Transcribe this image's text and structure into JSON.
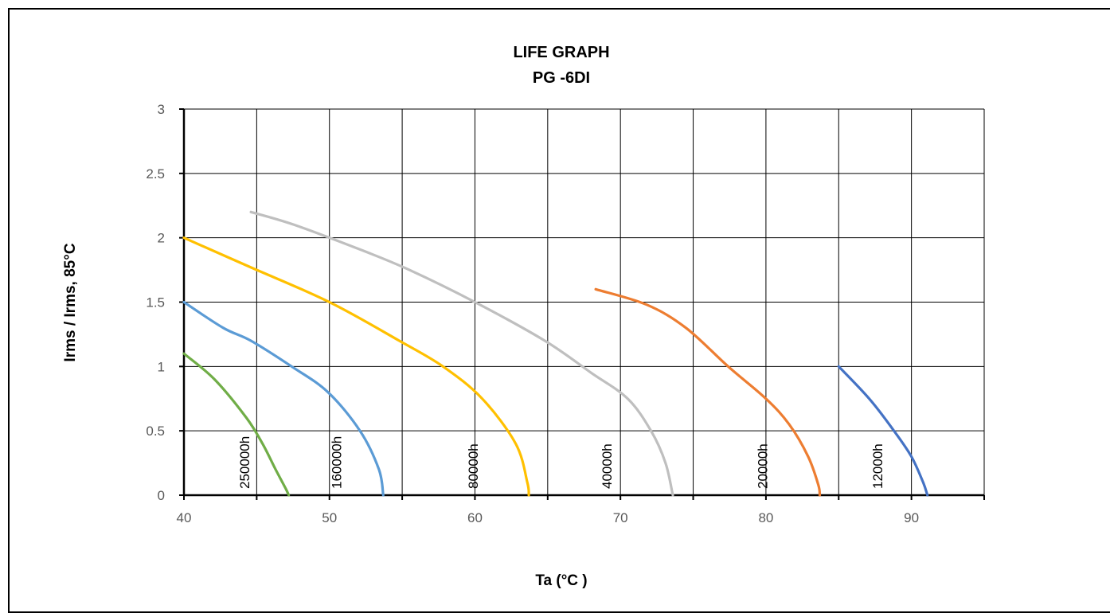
{
  "chart_data": {
    "type": "line",
    "title": "LIFE GRAPH",
    "subtitle": "PG -6DI",
    "xlabel": "Ta (°C )",
    "ylabel": "Irms / Irms, 85°C",
    "xlim": [
      40,
      95
    ],
    "ylim": [
      0,
      3
    ],
    "x_ticks": [
      40,
      50,
      60,
      70,
      80,
      90
    ],
    "x_tick_labels": [
      "40",
      "50",
      "60",
      "70",
      "80",
      "90"
    ],
    "y_ticks": [
      0,
      0.5,
      1,
      1.5,
      2,
      2.5,
      3
    ],
    "y_tick_labels": [
      "0",
      "0.5",
      "1",
      "1.5",
      "2",
      "2.5",
      "3"
    ],
    "grid": true,
    "series": [
      {
        "name": "250000h",
        "color": "#70AD47",
        "x": [
          40,
          42.1,
          44.3,
          45.4,
          46.3,
          47.0,
          47.2
        ],
        "y": [
          1.1,
          0.9,
          0.6,
          0.4,
          0.2,
          0.05,
          0
        ],
        "label_x": 44.5
      },
      {
        "name": "160000h",
        "color": "#5B9BD5",
        "x": [
          40,
          42.7,
          44.6,
          47.4,
          49.9,
          52.1,
          53.4,
          53.7
        ],
        "y": [
          1.5,
          1.3,
          1.2,
          1.0,
          0.8,
          0.5,
          0.2,
          0
        ],
        "label_x": 50.8
      },
      {
        "name": "80000h",
        "color": "#FFC000",
        "x": [
          40,
          44.6,
          50.0,
          54.8,
          57.8,
          60.5,
          62.8,
          63.6,
          63.7
        ],
        "y": [
          2.0,
          1.77,
          1.5,
          1.2,
          1.0,
          0.75,
          0.4,
          0.1,
          0
        ],
        "label_x": 60.2
      },
      {
        "name": "40000h",
        "color": "#BFBFBF",
        "x": [
          44.6,
          47.6,
          52.3,
          55.5,
          60.0,
          64.8,
          68.0,
          70.5,
          72.1,
          73.1,
          73.6
        ],
        "y": [
          2.2,
          2.1,
          1.9,
          1.75,
          1.5,
          1.2,
          0.95,
          0.75,
          0.5,
          0.25,
          0
        ],
        "label_x": 69.4
      },
      {
        "name": "20000h",
        "color": "#ED7D31",
        "x": [
          68.3,
          71.8,
          74.5,
          77.4,
          80.0,
          81.6,
          82.9,
          83.6,
          83.7
        ],
        "y": [
          1.6,
          1.48,
          1.3,
          1.0,
          0.75,
          0.55,
          0.3,
          0.08,
          0
        ],
        "label_x": 80.1
      },
      {
        "name": "12000h",
        "color": "#4472C4",
        "x": [
          85.0,
          87.1,
          88.8,
          90.0,
          90.8,
          91.1
        ],
        "y": [
          1.0,
          0.75,
          0.5,
          0.3,
          0.1,
          0
        ],
        "label_x": 88.0
      }
    ]
  }
}
